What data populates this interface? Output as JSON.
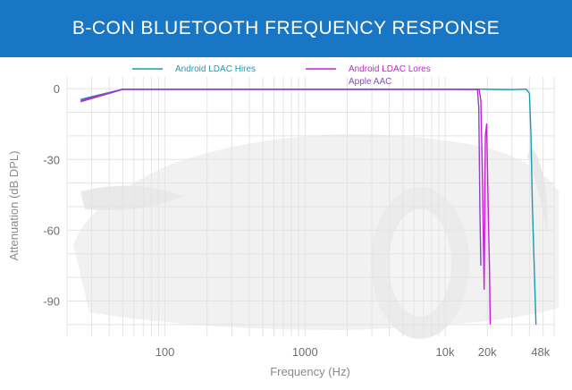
{
  "chart_data": {
    "type": "line",
    "title": "B-CON BLUETOOTH FREQUENCY RESPONSE",
    "xlabel": "Frequency (Hz)",
    "ylabel": "Attenuation (dB DPL)",
    "x_scale": "log",
    "xlim": [
      20,
      60000
    ],
    "ylim": [
      -105,
      5
    ],
    "x_ticks": [
      {
        "value": 100,
        "label": "100"
      },
      {
        "value": 1000,
        "label": "1000"
      },
      {
        "value": 10000,
        "label": "10k"
      },
      {
        "value": 20000,
        "label": "20k"
      },
      {
        "value": 48000,
        "label": "48k"
      }
    ],
    "y_ticks": [
      {
        "value": 0,
        "label": "0"
      },
      {
        "value": -30,
        "label": "-30"
      },
      {
        "value": -60,
        "label": "-60"
      },
      {
        "value": -90,
        "label": "-90"
      }
    ],
    "grid": true,
    "legend_position": "top",
    "series": [
      {
        "name": "Android LDAC Hires",
        "color": "#1a9bb0",
        "points": [
          [
            25,
            -4.5
          ],
          [
            50,
            -0.2
          ],
          [
            1000,
            -0.2
          ],
          [
            10000,
            -0.2
          ],
          [
            18000,
            -0.2
          ],
          [
            23000,
            -0.3
          ],
          [
            30000,
            -0.4
          ],
          [
            38000,
            -0.2
          ],
          [
            40000,
            -2
          ],
          [
            41000,
            -20
          ],
          [
            42000,
            -50
          ],
          [
            43500,
            -80
          ],
          [
            44500,
            -100
          ]
        ]
      },
      {
        "name": "Android LDAC Lores",
        "color": "#c81fd4",
        "points": [
          [
            25,
            -5
          ],
          [
            50,
            -0.2
          ],
          [
            1000,
            -0.2
          ],
          [
            10000,
            -0.2
          ],
          [
            17500,
            -0.3
          ],
          [
            18000,
            -5
          ],
          [
            18500,
            -40
          ],
          [
            19000,
            -85
          ],
          [
            19400,
            -20
          ],
          [
            19800,
            -15
          ],
          [
            20300,
            -50
          ],
          [
            20700,
            -75
          ],
          [
            21000,
            -100
          ]
        ]
      },
      {
        "name": "Apple AAC",
        "color": "#8a45c9",
        "points": [
          [
            25,
            -5.5
          ],
          [
            50,
            -0.3
          ],
          [
            1000,
            -0.3
          ],
          [
            10000,
            -0.3
          ],
          [
            17000,
            -0.3
          ],
          [
            17400,
            -8
          ],
          [
            17700,
            -50
          ],
          [
            18000,
            -75
          ]
        ]
      }
    ]
  }
}
